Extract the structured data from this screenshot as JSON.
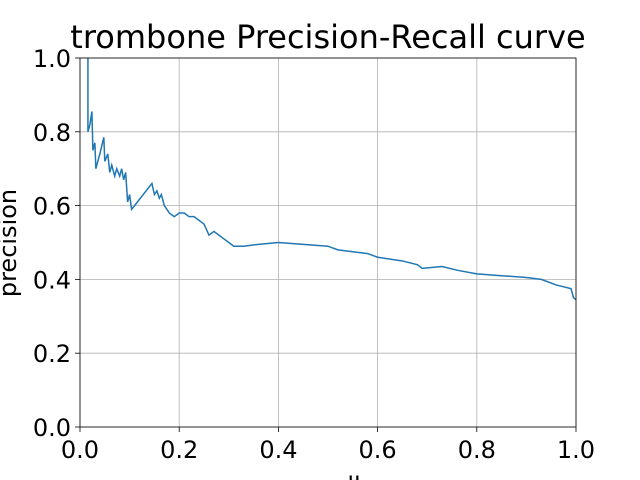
{
  "chart_data": {
    "type": "line",
    "title": "trombone Precision-Recall curve",
    "x_label": "recall",
    "y_label": "precision",
    "x": [
      0.016,
      0.016,
      0.02,
      0.024,
      0.026,
      0.03,
      0.032,
      0.04,
      0.048,
      0.05,
      0.056,
      0.06,
      0.064,
      0.07,
      0.074,
      0.08,
      0.084,
      0.088,
      0.092,
      0.096,
      0.1,
      0.104,
      0.11,
      0.145,
      0.15,
      0.155,
      0.16,
      0.164,
      0.17,
      0.18,
      0.19,
      0.2,
      0.21,
      0.22,
      0.23,
      0.24,
      0.25,
      0.26,
      0.27,
      0.28,
      0.29,
      0.3,
      0.31,
      0.33,
      0.36,
      0.4,
      0.45,
      0.5,
      0.52,
      0.55,
      0.58,
      0.6,
      0.65,
      0.68,
      0.69,
      0.73,
      0.76,
      0.8,
      0.85,
      0.9,
      0.93,
      0.96,
      0.99,
      0.995,
      1.0
    ],
    "series": [
      {
        "name": "precision",
        "color": "#1f77b4",
        "values": [
          1.0,
          0.8,
          0.82,
          0.855,
          0.75,
          0.77,
          0.7,
          0.74,
          0.785,
          0.72,
          0.74,
          0.69,
          0.71,
          0.68,
          0.7,
          0.68,
          0.7,
          0.67,
          0.69,
          0.61,
          0.63,
          0.59,
          0.6,
          0.66,
          0.63,
          0.64,
          0.62,
          0.63,
          0.6,
          0.58,
          0.57,
          0.58,
          0.58,
          0.57,
          0.57,
          0.56,
          0.55,
          0.52,
          0.53,
          0.52,
          0.51,
          0.5,
          0.49,
          0.49,
          0.495,
          0.5,
          0.495,
          0.49,
          0.48,
          0.475,
          0.47,
          0.46,
          0.45,
          0.44,
          0.43,
          0.435,
          0.425,
          0.415,
          0.41,
          0.405,
          0.4,
          0.385,
          0.375,
          0.35,
          0.345
        ]
      }
    ],
    "xlim": [
      0,
      1
    ],
    "ylim": [
      0,
      1
    ],
    "xticks": [
      {
        "value": 0,
        "label": "0.0"
      },
      {
        "value": 0.2,
        "label": "0.2"
      },
      {
        "value": 0.4,
        "label": "0.4"
      },
      {
        "value": 0.6,
        "label": "0.6"
      },
      {
        "value": 0.8,
        "label": "0.8"
      },
      {
        "value": 1,
        "label": "1.0"
      }
    ],
    "yticks": [
      {
        "value": 0,
        "label": "0.0"
      },
      {
        "value": 0.2,
        "label": "0.2"
      },
      {
        "value": 0.4,
        "label": "0.4"
      },
      {
        "value": 0.6,
        "label": "0.6"
      },
      {
        "value": 0.8,
        "label": "0.8"
      },
      {
        "value": 1,
        "label": "1.0"
      }
    ],
    "grid": true
  }
}
